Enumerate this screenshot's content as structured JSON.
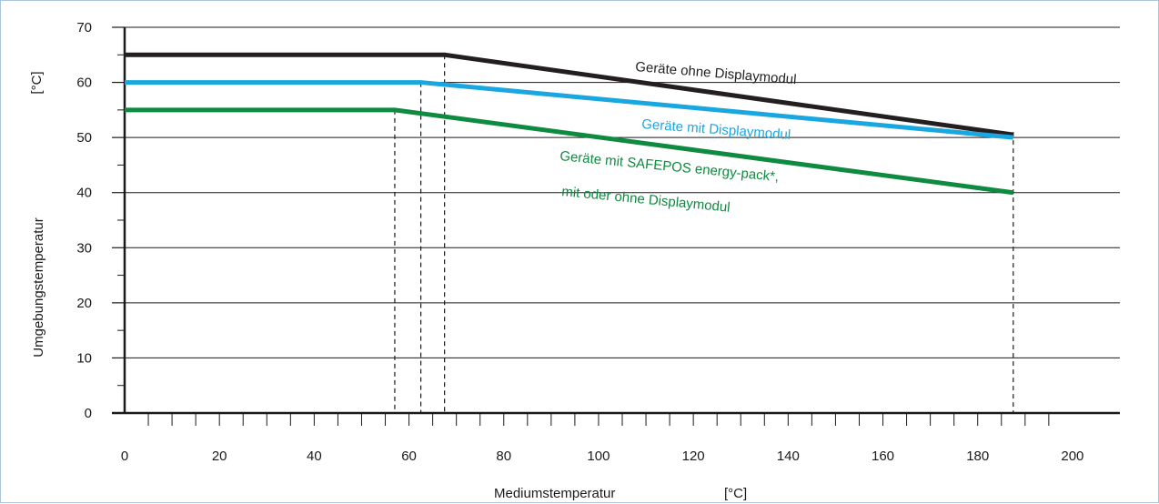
{
  "chart_data": {
    "type": "line",
    "xlabel": "Mediumstemperatur",
    "xunit": "[°C]",
    "ylabel": "Umgebungstemperatur",
    "yunit": "[°C]",
    "xlim": [
      0,
      210
    ],
    "ylim": [
      0,
      70
    ],
    "x_ticks": [
      0,
      20,
      40,
      60,
      80,
      100,
      120,
      140,
      160,
      180,
      200
    ],
    "y_ticks": [
      0,
      10,
      20,
      30,
      40,
      50,
      60,
      70
    ],
    "grid": "horizontal",
    "series": [
      {
        "name": "Geräte ohne Displaymodul",
        "color": "#231f20",
        "points": [
          [
            0,
            65
          ],
          [
            67.5,
            65
          ],
          [
            187.5,
            50.5
          ]
        ]
      },
      {
        "name": "Geräte mit Displaymodul",
        "color": "#1aa7e0",
        "points": [
          [
            0,
            60
          ],
          [
            62.5,
            60
          ],
          [
            187.5,
            50
          ]
        ]
      },
      {
        "name": "Geräte mit SAFEPOS energy-pack*,",
        "name_line2": "mit oder ohne Displaymodul",
        "color": "#0f8a41",
        "points": [
          [
            0,
            55
          ],
          [
            57,
            55
          ],
          [
            187.5,
            40
          ]
        ]
      }
    ],
    "reference_lines_x": [
      57,
      62.5,
      67.5,
      187.5
    ]
  }
}
